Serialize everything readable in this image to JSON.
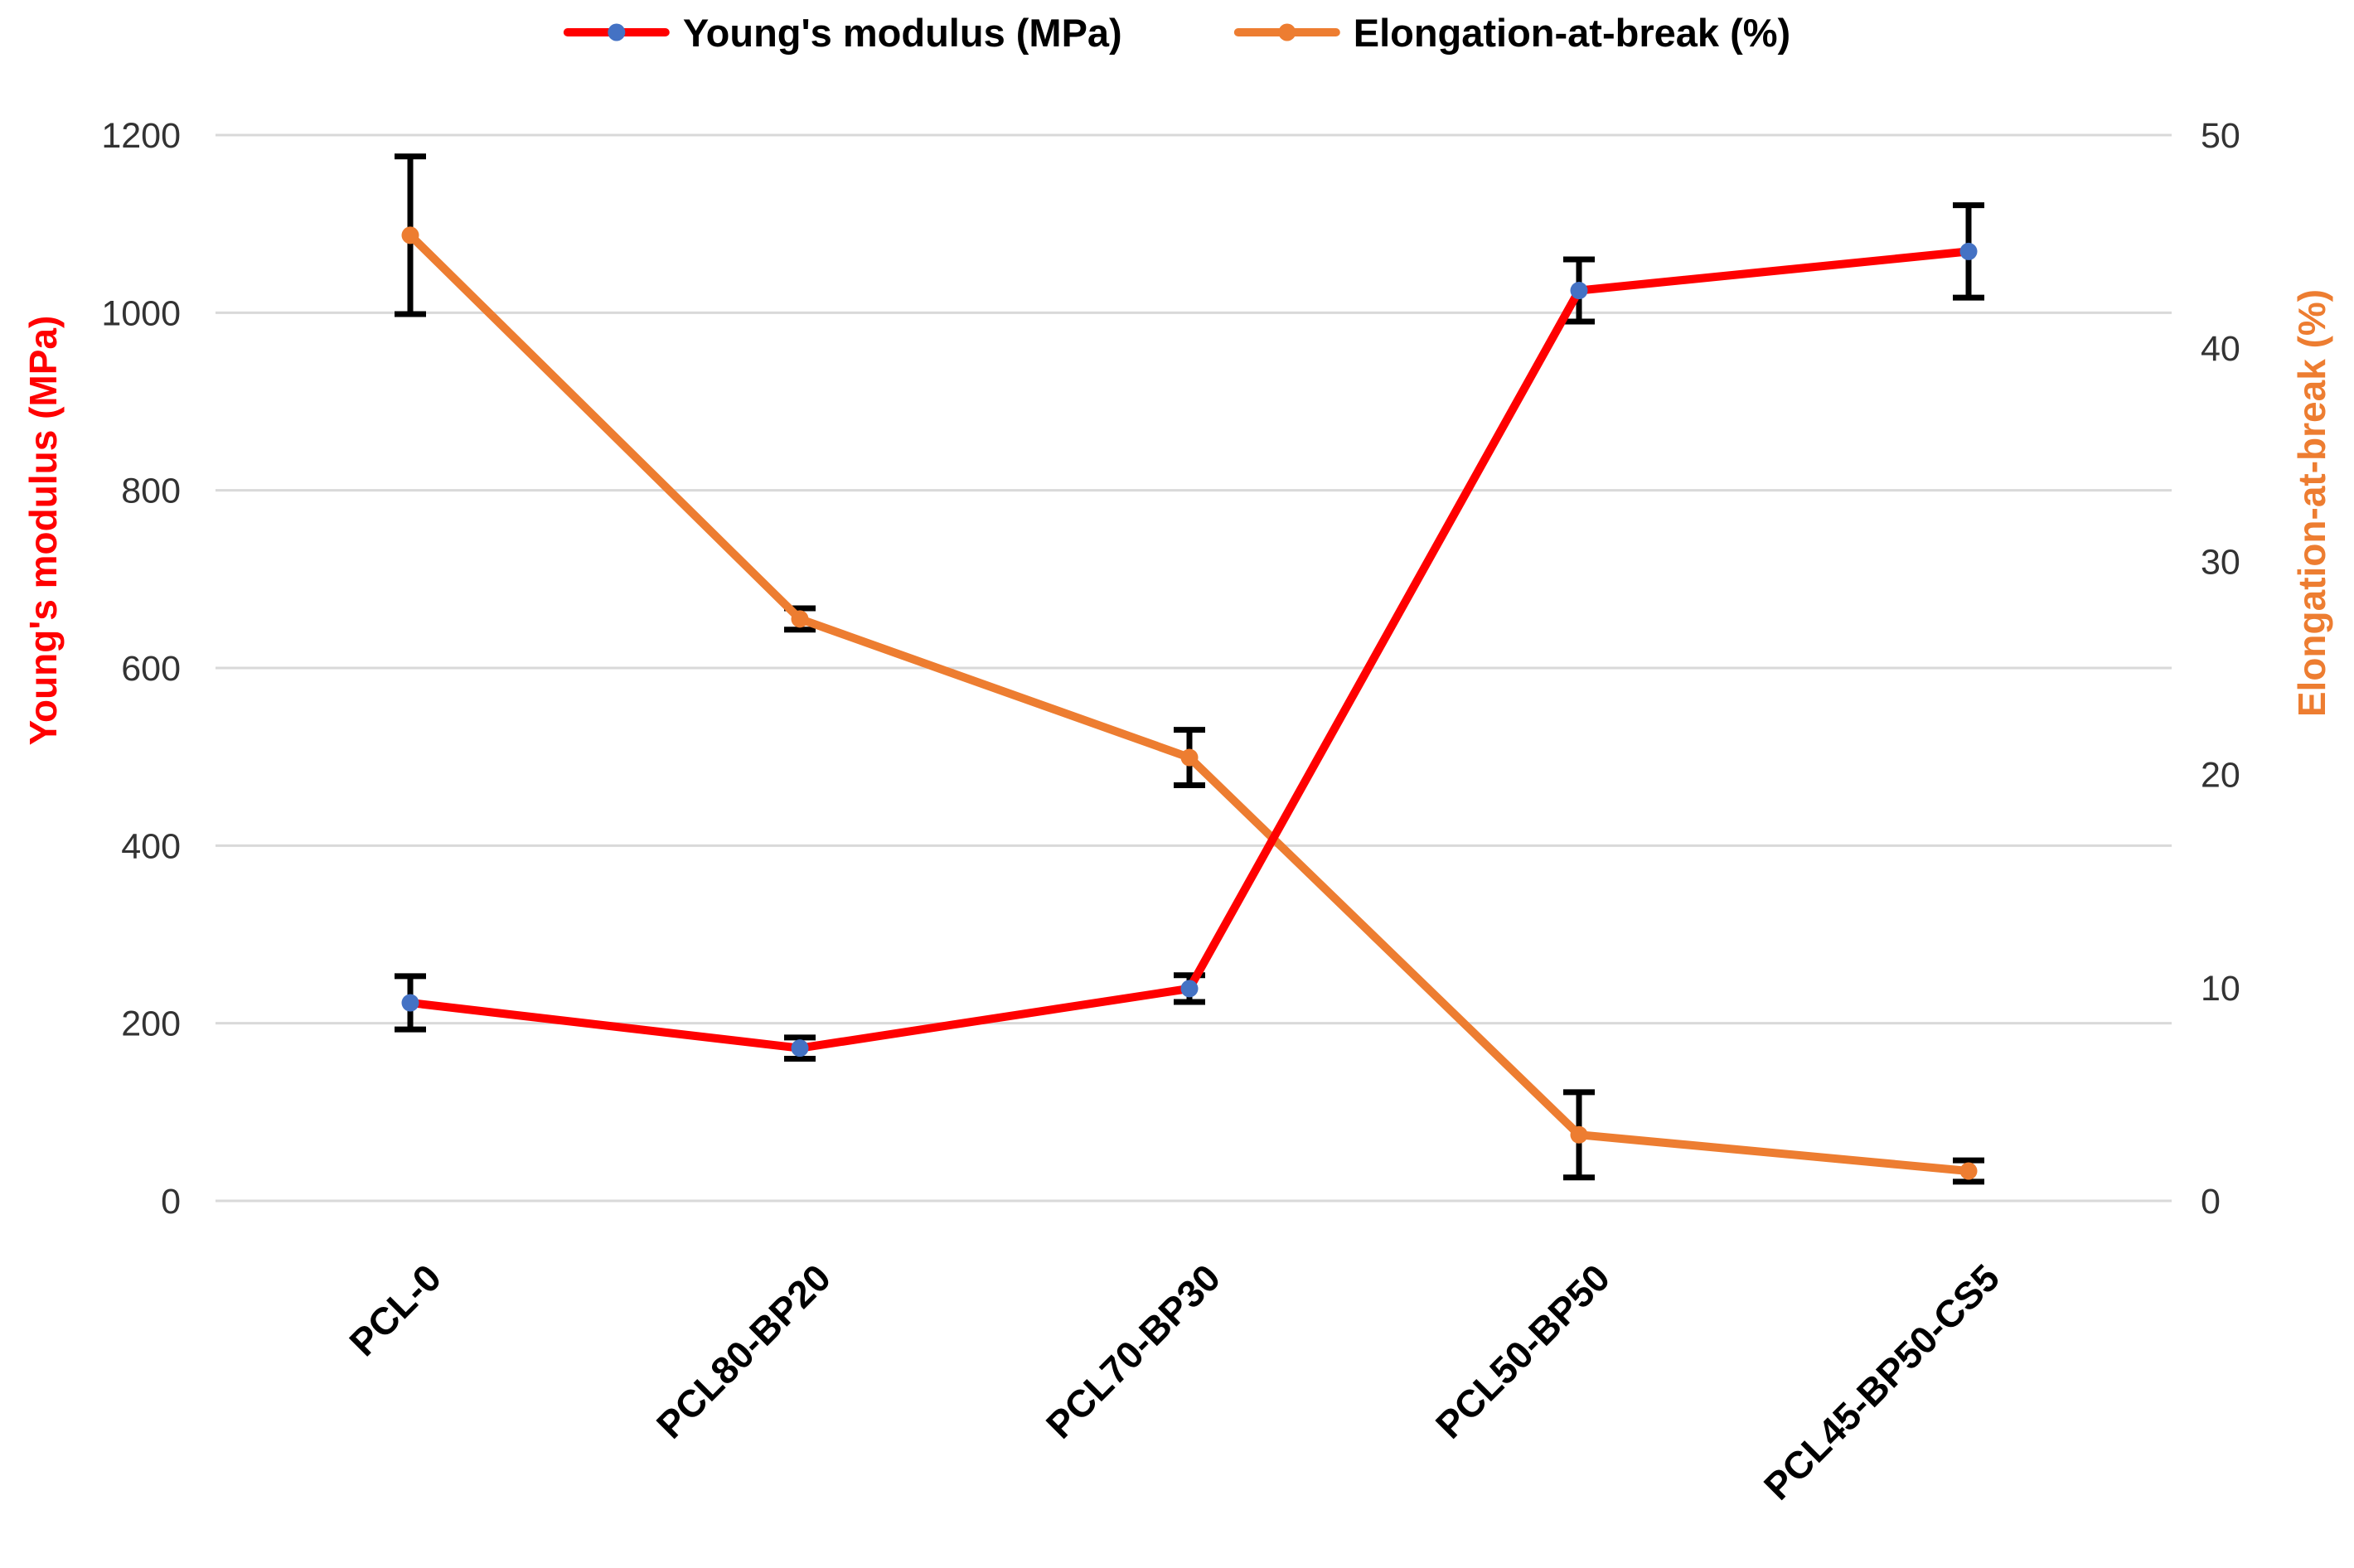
{
  "legend": {
    "items": [
      {
        "label": "Young's modulus (MPa)"
      },
      {
        "label": "Elongation-at-break (%)"
      }
    ]
  },
  "axes": {
    "left": {
      "title": "Young's modulus (MPa)",
      "color": "#FF0000",
      "ticks": [
        0,
        200,
        400,
        600,
        800,
        1000,
        1200
      ],
      "range": [
        0,
        1200
      ]
    },
    "right": {
      "title": "Elongation-at-break (%)",
      "color": "#ED7D31",
      "ticks": [
        0,
        10,
        20,
        30,
        40,
        50
      ],
      "range": [
        0,
        50
      ]
    }
  },
  "chart_data": {
    "type": "line",
    "title": "",
    "categories": [
      "PCL-0",
      "PCL80-BP20",
      "PCL70-BP30",
      "PCL50-BP50",
      "PCL45-BP50-CS5"
    ],
    "series": [
      {
        "name": "Young's modulus (MPa)",
        "axis": "left",
        "line_color": "#FF0000",
        "marker_color": "#4472C4",
        "values": [
          223,
          172,
          239,
          1025,
          1069
        ],
        "error_bars": [
          30,
          12,
          15,
          35,
          52
        ]
      },
      {
        "name": "Elongation-at-break (%)",
        "axis": "right",
        "line_color": "#ED7D31",
        "marker_color": "#ED7D31",
        "values": [
          45.3,
          27.3,
          20.8,
          3.1,
          1.4
        ],
        "error_bars": [
          3.7,
          0.5,
          1.3,
          2.0,
          0.5
        ]
      }
    ],
    "left_ylim": [
      0,
      1200
    ],
    "right_ylim": [
      0,
      50
    ],
    "grid": true,
    "legend_position": "top",
    "gridline_color": "#D9D9D9",
    "tick_label_color": "#333333",
    "error_bar_color": "#000000"
  }
}
